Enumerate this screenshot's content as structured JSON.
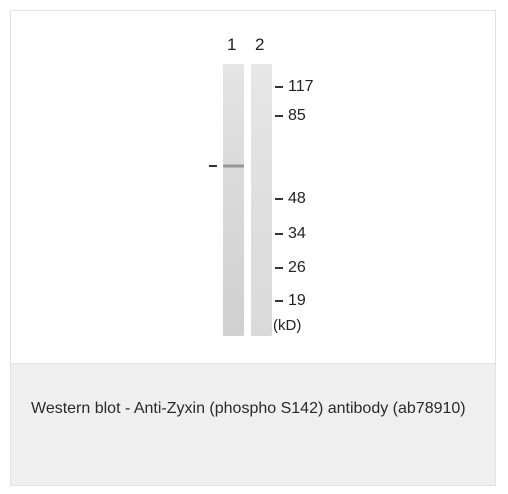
{
  "blot": {
    "lanes": [
      "1",
      "2"
    ],
    "markers": [
      "117",
      "85",
      "48",
      "34",
      "26",
      "19"
    ],
    "unit": "(kD)"
  },
  "caption": "Western blot - Anti-Zyxin (phospho S142) antibody (ab78910)"
}
